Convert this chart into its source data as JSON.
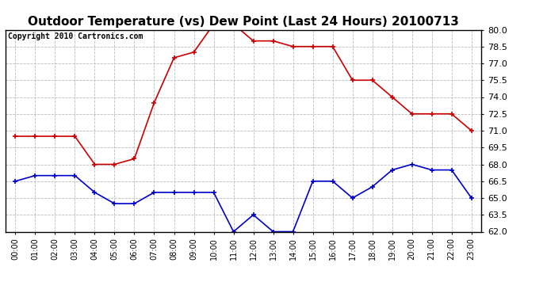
{
  "title": "Outdoor Temperature (vs) Dew Point (Last 24 Hours) 20100713",
  "copyright_text": "Copyright 2010 Cartronics.com",
  "hours": [
    "00:00",
    "01:00",
    "02:00",
    "03:00",
    "04:00",
    "05:00",
    "06:00",
    "07:00",
    "08:00",
    "09:00",
    "10:00",
    "11:00",
    "12:00",
    "13:00",
    "14:00",
    "15:00",
    "16:00",
    "17:00",
    "18:00",
    "19:00",
    "20:00",
    "21:00",
    "22:00",
    "23:00"
  ],
  "temp": [
    70.5,
    70.5,
    70.5,
    70.5,
    68.0,
    68.0,
    68.5,
    73.5,
    77.5,
    78.0,
    80.5,
    80.5,
    79.0,
    79.0,
    78.5,
    78.5,
    78.5,
    75.5,
    75.5,
    74.0,
    72.5,
    72.5,
    72.5,
    71.0
  ],
  "dew": [
    66.5,
    67.0,
    67.0,
    67.0,
    65.5,
    64.5,
    64.5,
    65.5,
    65.5,
    65.5,
    65.5,
    62.0,
    63.5,
    62.0,
    62.0,
    66.5,
    66.5,
    65.0,
    66.0,
    67.5,
    68.0,
    67.5,
    67.5,
    65.0
  ],
  "temp_color": "#cc0000",
  "dew_color": "#0000cc",
  "ylim_min": 62.0,
  "ylim_max": 80.0,
  "ytick_step": 1.5,
  "bg_color": "#ffffff",
  "grid_color": "#bbbbbb",
  "title_fontsize": 11,
  "copyright_fontsize": 7,
  "tick_fontsize": 8,
  "xtick_fontsize": 7
}
